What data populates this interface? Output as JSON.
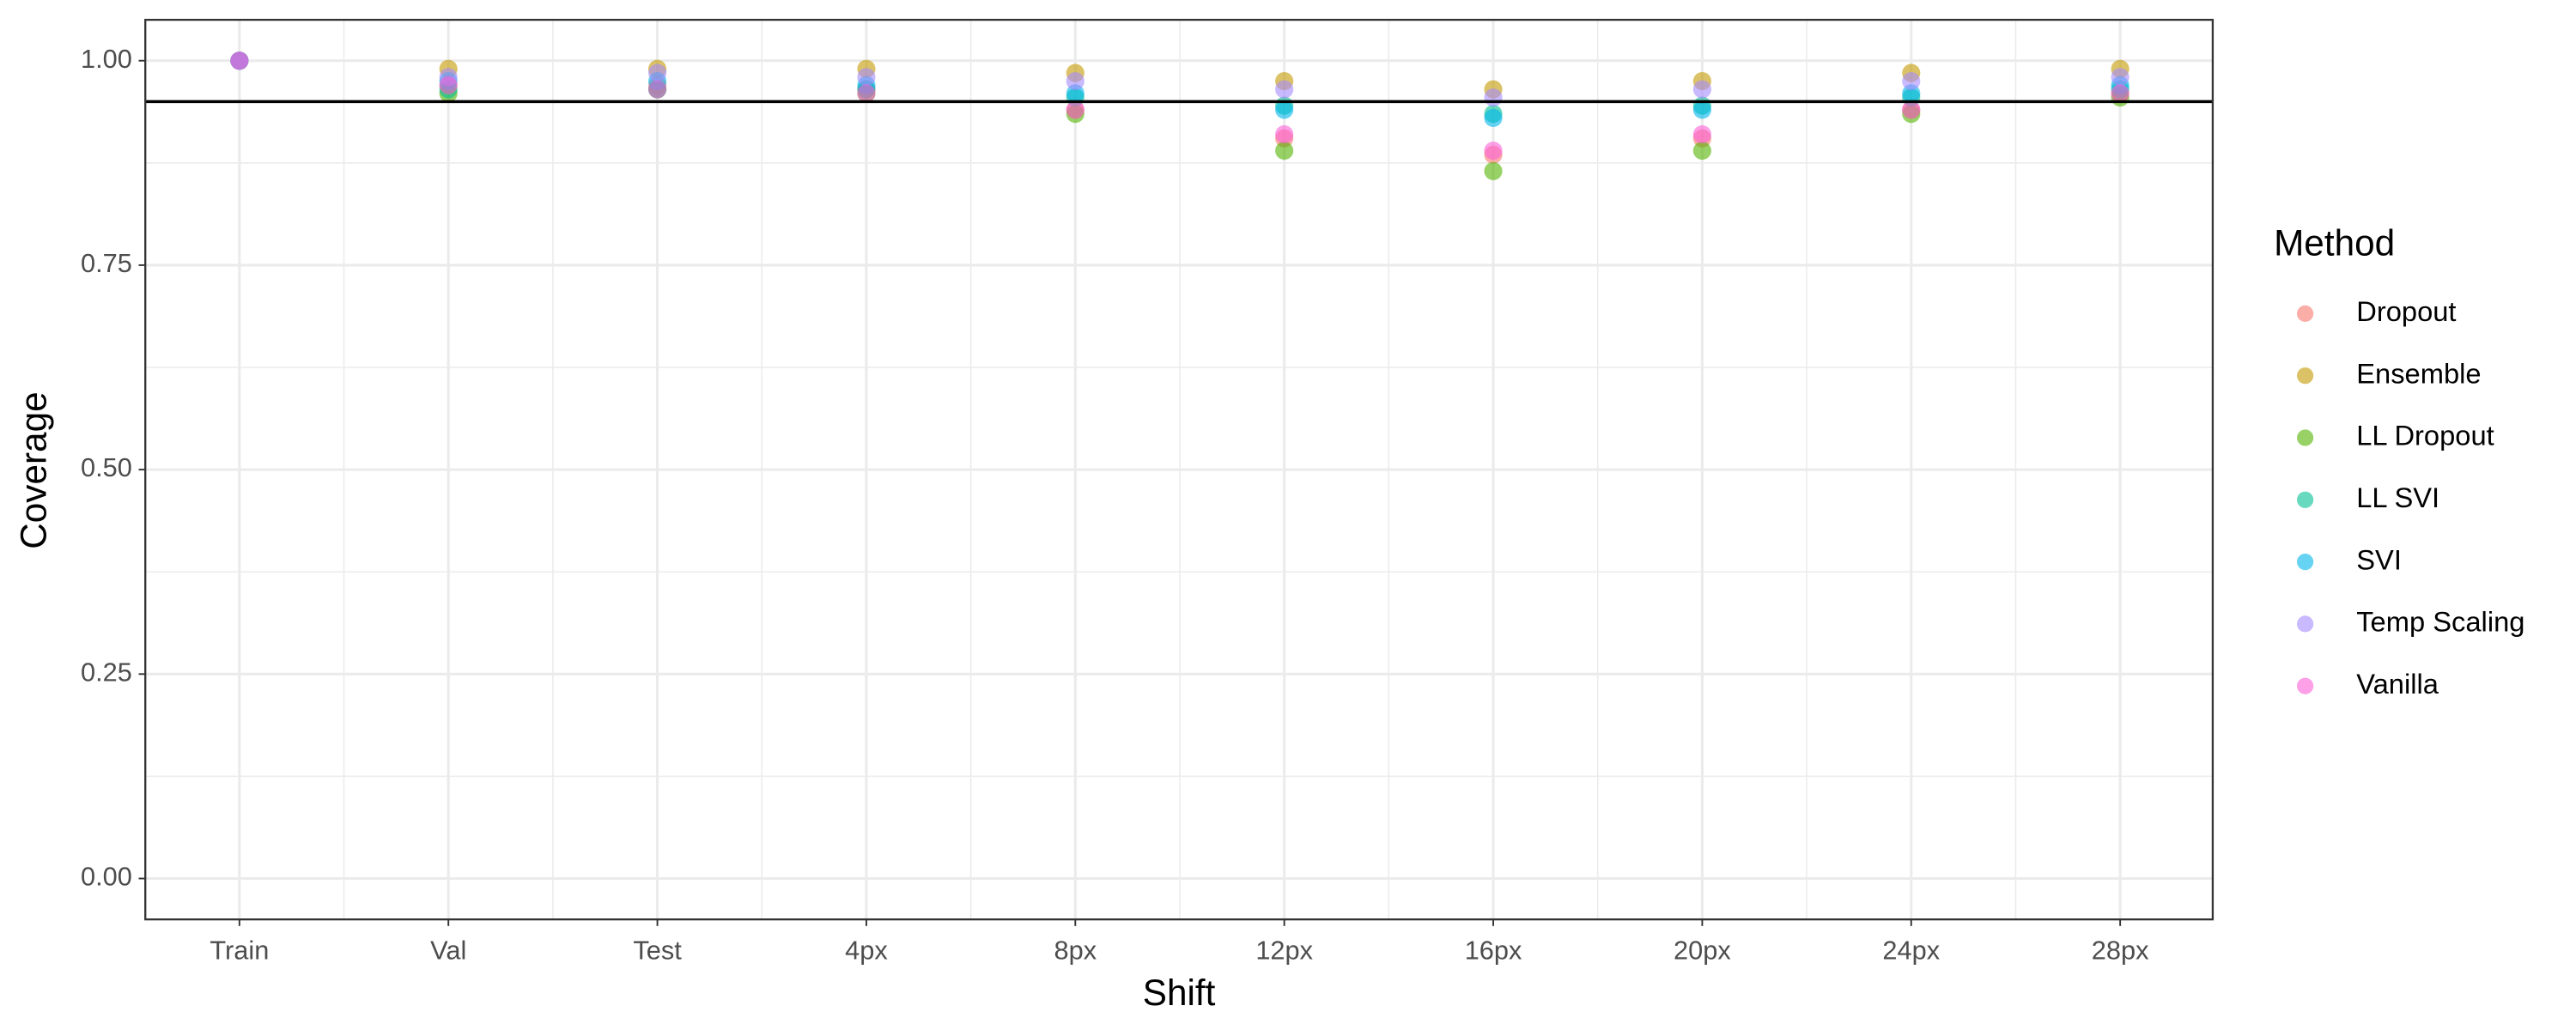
{
  "chart_data": {
    "type": "scatter",
    "x_label": "Shift",
    "y_label": "Coverage",
    "legend_title": "Method",
    "legend_position": "right",
    "categories": [
      "Train",
      "Val",
      "Test",
      "4px",
      "8px",
      "12px",
      "16px",
      "20px",
      "24px",
      "28px"
    ],
    "ylim": [
      -0.05,
      1.05
    ],
    "yticks": [
      {
        "value": 0,
        "label": "0.00"
      },
      {
        "value": 0.25,
        "label": "0.25"
      },
      {
        "value": 0.5,
        "label": "0.50"
      },
      {
        "value": 0.75,
        "label": "0.75"
      },
      {
        "value": 1,
        "label": "1.00"
      }
    ],
    "minor_yticks": [
      0.125,
      0.375,
      0.625,
      0.875
    ],
    "hline": 0.95,
    "grid": true,
    "series": [
      {
        "name": "Dropout",
        "color": "#F8766D",
        "values": [
          1.0,
          0.97,
          0.97,
          0.965,
          0.94,
          0.905,
          0.885,
          0.905,
          0.94,
          0.96
        ]
      },
      {
        "name": "Ensemble",
        "color": "#C49A00",
        "values": [
          1.0,
          0.99,
          0.99,
          0.99,
          0.985,
          0.975,
          0.965,
          0.975,
          0.985,
          0.99
        ]
      },
      {
        "name": "LL Dropout",
        "color": "#53B400",
        "values": [
          1.0,
          0.96,
          0.965,
          0.96,
          0.935,
          0.89,
          0.865,
          0.89,
          0.935,
          0.955
        ]
      },
      {
        "name": "LL SVI",
        "color": "#00C094",
        "values": [
          1.0,
          0.965,
          0.965,
          0.965,
          0.955,
          0.945,
          0.935,
          0.945,
          0.955,
          0.965
        ]
      },
      {
        "name": "SVI",
        "color": "#00B6EB",
        "values": [
          1.0,
          0.975,
          0.975,
          0.97,
          0.96,
          0.94,
          0.93,
          0.94,
          0.96,
          0.97
        ]
      },
      {
        "name": "Temp Scaling",
        "color": "#A58AFF",
        "values": [
          1.0,
          0.98,
          0.985,
          0.98,
          0.975,
          0.965,
          0.955,
          0.965,
          0.975,
          0.98
        ]
      },
      {
        "name": "Vanilla",
        "color": "#FB61D7",
        "values": [
          1.0,
          0.97,
          0.965,
          0.96,
          0.94,
          0.91,
          0.89,
          0.91,
          0.94,
          0.96
        ]
      }
    ]
  }
}
